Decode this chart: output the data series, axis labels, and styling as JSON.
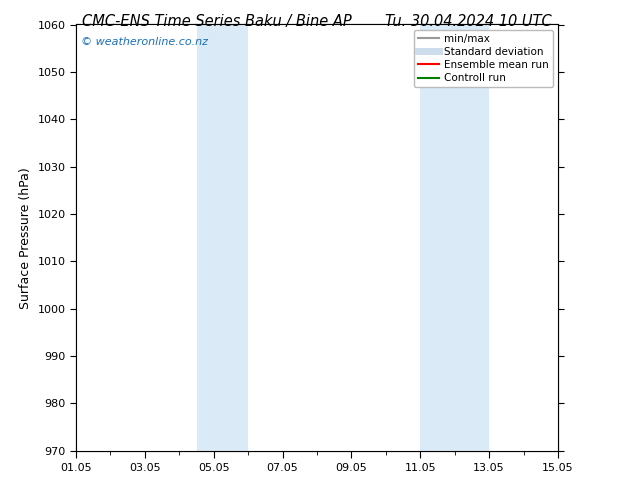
{
  "title_left": "CMC-ENS Time Series Baku / Bine AP",
  "title_right": "Tu. 30.04.2024 10 UTC",
  "ylabel": "Surface Pressure (hPa)",
  "ylim": [
    970,
    1060
  ],
  "yticks": [
    970,
    980,
    990,
    1000,
    1010,
    1020,
    1030,
    1040,
    1050,
    1060
  ],
  "x_days": 14,
  "xtick_labels": [
    "01.05",
    "03.05",
    "05.05",
    "07.05",
    "09.05",
    "11.05",
    "13.05",
    "15.05"
  ],
  "xtick_positions": [
    0,
    2,
    4,
    6,
    8,
    10,
    12,
    14
  ],
  "shaded_regions": [
    {
      "x_start": 3.5,
      "x_end": 5.0
    },
    {
      "x_start": 10.0,
      "x_end": 12.0
    }
  ],
  "shade_color": "#daeaf7",
  "watermark": "© weatheronline.co.nz",
  "watermark_color": "#1a6fbb",
  "legend_items": [
    {
      "label": "min/max",
      "color": "#999999",
      "lw": 1.5
    },
    {
      "label": "Standard deviation",
      "color": "#ccddee",
      "lw": 5
    },
    {
      "label": "Ensemble mean run",
      "color": "#ff0000",
      "lw": 1.5
    },
    {
      "label": "Controll run",
      "color": "#008000",
      "lw": 1.5
    }
  ],
  "bg_color": "#ffffff",
  "spine_color": "#000000",
  "title_fontsize": 10.5,
  "ylabel_fontsize": 9,
  "tick_fontsize": 8,
  "legend_fontsize": 7.5,
  "watermark_fontsize": 8
}
